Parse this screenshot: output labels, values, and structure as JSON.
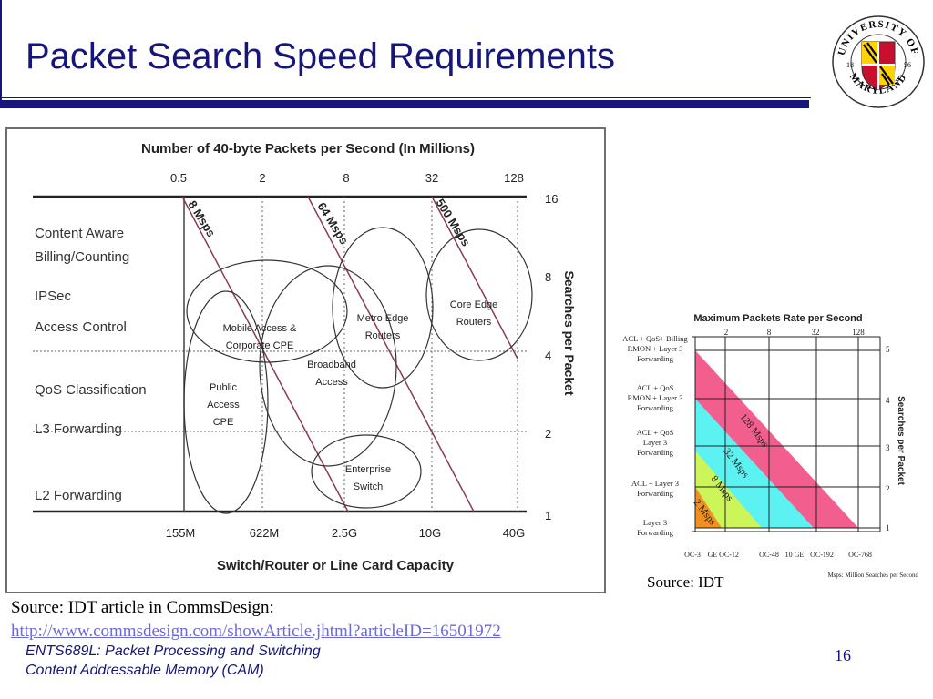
{
  "slide": {
    "title": "Packet Search Speed Requirements",
    "footer_line1": "ENTS689L: Packet Processing and Switching",
    "footer_line2": "Content Addressable Memory (CAM)",
    "page_number": "16",
    "source_article": "Source: IDT article in CommsDesign:",
    "source_url": "http://www.commsdesign.com/showArticle.jhtml?articleID=16501972",
    "source_idt": "Source: IDT"
  },
  "logo": {
    "text_top": "UNIVERSITY OF",
    "text_bottom": "MARYLAND",
    "year_left": "18",
    "year_right": "56"
  },
  "colors": {
    "title_blue": "#15157a",
    "band_pink": "#f25f8f",
    "band_cyan": "#5cf2f2",
    "band_green": "#ccf55a",
    "band_orange": "#f0901e"
  },
  "chart_data": [
    {
      "type": "scatter",
      "title": "Number of 40-byte Packets per Second (In Millions)",
      "xlabel": "Switch/Router or Line Card Capacity",
      "ylabel": "Searches per Packet",
      "top_ticks": [
        "0.5",
        "2",
        "8",
        "32",
        "128"
      ],
      "bottom_ticks": [
        "155M",
        "622M",
        "2.5G",
        "10G",
        "40G"
      ],
      "right_ticks": [
        "16",
        "8",
        "4",
        "2",
        "1"
      ],
      "rows": [
        "Content Aware",
        "Billing/Counting",
        "IPSec",
        "Access Control",
        "QoS Classification",
        "L3 Forwarding",
        "L2 Forwarding"
      ],
      "diagonals": [
        "8 Msps",
        "64 Msps",
        "500 Msps"
      ],
      "regions": [
        {
          "line1": "Mobile Access &",
          "line2": "Corporate CPE"
        },
        {
          "line1": "Metro Edge",
          "line2": "Routers"
        },
        {
          "line1": "Core Edge",
          "line2": "Routers"
        },
        {
          "line1": "Broadband",
          "line2": "Access"
        },
        {
          "line1": "Public",
          "line2": "Access",
          "line3": "CPE"
        },
        {
          "line1": "Enterprise",
          "line2": "Switch"
        }
      ]
    },
    {
      "type": "area",
      "title": "Maximum Packets Rate per Second",
      "ylabel": "Searches per Packet",
      "footnote": "Msps: Million Searches per Second",
      "top_ticks": [
        "2",
        "8",
        "32",
        "128"
      ],
      "bottom_ticks": [
        "OC-3",
        "GE",
        "OC-12",
        "OC-48",
        "10 GE",
        "OC-192",
        "OC-768"
      ],
      "right_ticks": [
        "5",
        "4",
        "3",
        "2",
        "1"
      ],
      "rows": [
        {
          "l1": "ACL + QoS+ Billing",
          "l2": "RMON + Layer 3",
          "l3": "Forwarding"
        },
        {
          "l1": "ACL + QoS",
          "l2": "RMON + Layer 3",
          "l3": "Forwarding"
        },
        {
          "l1": "ACL + QoS",
          "l2": "Layer 3",
          "l3": "Forwarding"
        },
        {
          "l1": "ACL + Layer 3",
          "l2": "Forwarding"
        },
        {
          "l1": "Layer 3",
          "l2": "Forwarding"
        }
      ],
      "bands": [
        "128 Msps",
        "32 Msps",
        "8 Msps",
        "2 Msps"
      ]
    }
  ]
}
